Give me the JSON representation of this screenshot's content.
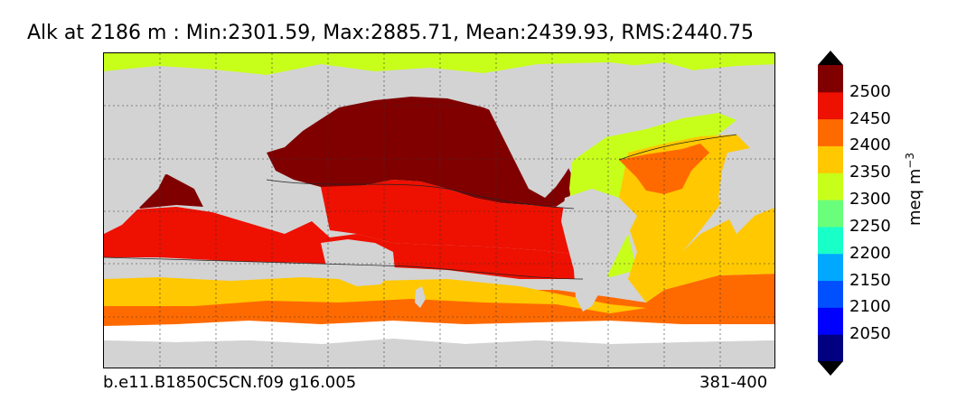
{
  "title": "Alk at 2186 m : Min:2301.59, Max:2885.71, Mean:2439.93, RMS:2440.75",
  "footer": {
    "case_name": "b.e11.B1850C5CN.f09 g16.005",
    "years": "381-400"
  },
  "colorbar": {
    "label_text": "meq m",
    "label_exponent": "−3",
    "ticks": [
      "2050",
      "2100",
      "2150",
      "2200",
      "2250",
      "2300",
      "2350",
      "2400",
      "2450",
      "2500"
    ],
    "colors": [
      "#000080",
      "#0000ff",
      "#0050ff",
      "#00a8ff",
      "#19ffc8",
      "#6aff7a",
      "#c8ff1a",
      "#ffc800",
      "#ff6a00",
      "#ee1000",
      "#800000"
    ],
    "extend": "both"
  },
  "map": {
    "land_color": "#d3d3d3",
    "missing_color": "#ffffff",
    "projection": "cylindrical equidistant, centered on Pacific",
    "gridlines": "dashed"
  }
}
